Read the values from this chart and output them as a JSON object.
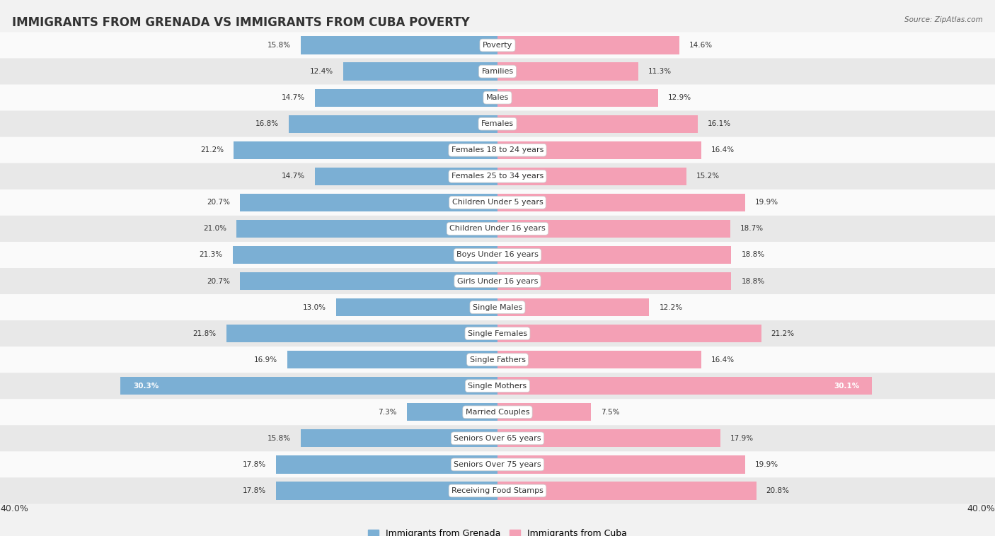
{
  "title": "IMMIGRANTS FROM GRENADA VS IMMIGRANTS FROM CUBA POVERTY",
  "source": "Source: ZipAtlas.com",
  "categories": [
    "Poverty",
    "Families",
    "Males",
    "Females",
    "Females 18 to 24 years",
    "Females 25 to 34 years",
    "Children Under 5 years",
    "Children Under 16 years",
    "Boys Under 16 years",
    "Girls Under 16 years",
    "Single Males",
    "Single Females",
    "Single Fathers",
    "Single Mothers",
    "Married Couples",
    "Seniors Over 65 years",
    "Seniors Over 75 years",
    "Receiving Food Stamps"
  ],
  "grenada_values": [
    15.8,
    12.4,
    14.7,
    16.8,
    21.2,
    14.7,
    20.7,
    21.0,
    21.3,
    20.7,
    13.0,
    21.8,
    16.9,
    30.3,
    7.3,
    15.8,
    17.8,
    17.8
  ],
  "cuba_values": [
    14.6,
    11.3,
    12.9,
    16.1,
    16.4,
    15.2,
    19.9,
    18.7,
    18.8,
    18.8,
    12.2,
    21.2,
    16.4,
    30.1,
    7.5,
    17.9,
    19.9,
    20.8
  ],
  "grenada_color": "#7bafd4",
  "cuba_color": "#f4a0b5",
  "grenada_label": "Immigrants from Grenada",
  "cuba_label": "Immigrants from Cuba",
  "x_max": 40.0,
  "background_color": "#f2f2f2",
  "row_bg_light": "#fafafa",
  "row_bg_dark": "#e8e8e8",
  "title_fontsize": 12,
  "label_fontsize": 8,
  "value_fontsize": 7.5,
  "bar_height": 0.68
}
